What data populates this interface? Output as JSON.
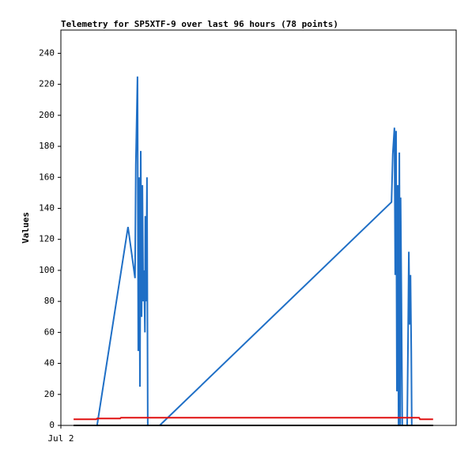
{
  "chart_data": {
    "type": "line",
    "title": "Telemetry for SP5XTF-9 over last 96 hours (78 points)",
    "ylabel": "Values",
    "xlim": [
      0,
      96
    ],
    "xticks": [
      {
        "value": 0,
        "label": "Jul 2"
      }
    ],
    "ylim": [
      0,
      255
    ],
    "yticks": [
      0,
      20,
      40,
      60,
      80,
      100,
      120,
      140,
      160,
      180,
      200,
      220,
      240
    ],
    "series": [
      {
        "color": "#1f6fc6",
        "x": [
          8.8,
          16.3,
          18.0,
          18.2,
          18.6,
          18.8,
          19.0,
          19.2,
          19.4,
          19.6,
          19.8,
          20.0,
          20.2,
          20.4,
          20.5,
          20.7,
          20.9,
          21.1,
          24.0,
          80.3,
          80.6,
          81.0,
          81.2,
          81.4,
          81.6,
          81.8,
          82.0,
          82.2,
          82.4,
          82.5,
          82.7,
          82.9,
          84.1,
          84.3,
          84.5,
          84.7,
          84.9,
          85.1,
          85.2
        ],
        "values": [
          0,
          128,
          95,
          168,
          225,
          48,
          160,
          25,
          177,
          70,
          155,
          80,
          100,
          60,
          135,
          80,
          160,
          0,
          0,
          144,
          175,
          192,
          97,
          190,
          22,
          155,
          0,
          176,
          0,
          147,
          85,
          0,
          0,
          55,
          112,
          65,
          97,
          48,
          0
        ]
      },
      {
        "color": "#e01010",
        "x": [
          3.1,
          8.6,
          8.8,
          14.4,
          14.6,
          87.0,
          87.2,
          90.4
        ],
        "values": [
          4,
          4,
          4.5,
          4.5,
          5,
          5,
          4,
          4
        ]
      },
      {
        "color": "#000000",
        "x": [
          3.1,
          90.4
        ],
        "values": [
          0,
          0
        ]
      }
    ]
  }
}
